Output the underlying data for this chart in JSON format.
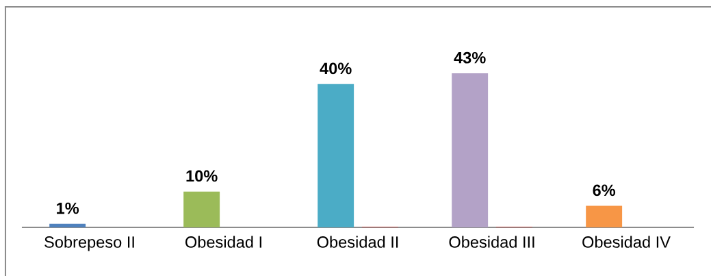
{
  "chart_data": {
    "type": "bar",
    "categories": [
      "Sobrepeso II",
      "Obesidad I",
      "Obesidad II",
      "Obesidad III",
      "Obesidad IV"
    ],
    "series": [
      {
        "colors": [
          "#4f81bd",
          "#9bbb59",
          "#4bacc6",
          "#b3a2c7",
          "#f79646"
        ],
        "values": [
          1,
          10,
          40,
          43,
          6
        ],
        "value_labels": [
          "1%",
          "10%",
          "40%",
          "43%",
          "6%"
        ]
      },
      {
        "color": "#c0504d",
        "values": [
          null,
          null,
          0.2,
          0.2,
          null
        ]
      }
    ],
    "tick_labels": "x"
  }
}
